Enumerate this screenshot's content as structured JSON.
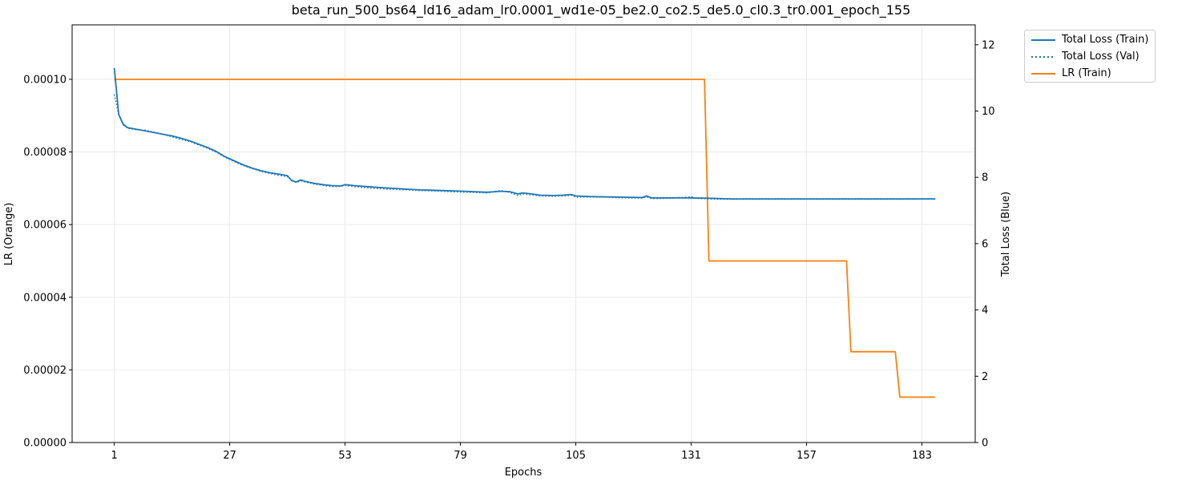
{
  "chart_data": {
    "type": "line",
    "title": "beta_run_500_bs64_ld16_adam_lr0.0001_wd1e-05_be2.0_co2.5_de5.0_cl0.3_tr0.001_epoch_155",
    "xlabel": "Epochs",
    "ylabel_left": "LR (Orange)",
    "ylabel_right": "Total Loss (Blue)",
    "xlim": [
      -8.5,
      195
    ],
    "ylim_left": [
      0,
      0.000115
    ],
    "ylim_right": [
      0,
      12.6
    ],
    "x_ticks": [
      1,
      27,
      53,
      79,
      105,
      131,
      157,
      183
    ],
    "y_left_ticks": [
      "0.00000",
      "0.00002",
      "0.00004",
      "0.00006",
      "0.00008",
      "0.00010"
    ],
    "y_left_tick_values": [
      0,
      2e-05,
      4e-05,
      6e-05,
      8e-05,
      0.0001
    ],
    "y_right_ticks": [
      "0",
      "2",
      "4",
      "6",
      "8",
      "10",
      "12"
    ],
    "y_right_tick_values": [
      0,
      2,
      4,
      6,
      8,
      10,
      12
    ],
    "grid": true,
    "legend_position": "outside top-right",
    "colors": {
      "loss": "#1f77b4",
      "lr": "#ff7f0e"
    },
    "series": [
      {
        "name": "Total Loss (Train)",
        "axis": "right",
        "style": "solid",
        "points": [
          [
            1,
            11.3
          ],
          [
            1.5,
            10.6
          ],
          [
            2,
            9.9
          ],
          [
            3,
            9.6
          ],
          [
            4,
            9.5
          ],
          [
            6,
            9.45
          ],
          [
            8,
            9.4
          ],
          [
            10,
            9.35
          ],
          [
            12,
            9.3
          ],
          [
            14,
            9.25
          ],
          [
            16,
            9.18
          ],
          [
            18,
            9.1
          ],
          [
            20,
            9.0
          ],
          [
            22,
            8.9
          ],
          [
            24,
            8.78
          ],
          [
            26,
            8.62
          ],
          [
            28,
            8.5
          ],
          [
            30,
            8.38
          ],
          [
            32,
            8.28
          ],
          [
            34,
            8.2
          ],
          [
            36,
            8.14
          ],
          [
            38,
            8.1
          ],
          [
            40,
            8.05
          ],
          [
            41,
            7.9
          ],
          [
            42,
            7.86
          ],
          [
            43,
            7.92
          ],
          [
            44,
            7.88
          ],
          [
            46,
            7.82
          ],
          [
            48,
            7.78
          ],
          [
            50,
            7.75
          ],
          [
            52,
            7.74
          ],
          [
            53,
            7.78
          ],
          [
            55,
            7.75
          ],
          [
            58,
            7.72
          ],
          [
            62,
            7.68
          ],
          [
            66,
            7.65
          ],
          [
            70,
            7.62
          ],
          [
            75,
            7.6
          ],
          [
            80,
            7.58
          ],
          [
            85,
            7.55
          ],
          [
            88,
            7.58
          ],
          [
            90,
            7.57
          ],
          [
            92,
            7.5
          ],
          [
            93,
            7.53
          ],
          [
            95,
            7.5
          ],
          [
            97,
            7.46
          ],
          [
            100,
            7.45
          ],
          [
            102,
            7.46
          ],
          [
            104,
            7.48
          ],
          [
            105,
            7.44
          ],
          [
            108,
            7.42
          ],
          [
            112,
            7.41
          ],
          [
            116,
            7.4
          ],
          [
            120,
            7.39
          ],
          [
            121,
            7.44
          ],
          [
            122,
            7.38
          ],
          [
            126,
            7.38
          ],
          [
            130,
            7.38
          ],
          [
            135,
            7.37
          ],
          [
            140,
            7.35
          ],
          [
            150,
            7.35
          ],
          [
            160,
            7.35
          ],
          [
            170,
            7.35
          ],
          [
            180,
            7.35
          ],
          [
            186,
            7.35
          ]
        ]
      },
      {
        "name": "Total Loss (Val)",
        "axis": "right",
        "style": "dotted",
        "points": [
          [
            1,
            10.5
          ],
          [
            1.5,
            10.2
          ],
          [
            2,
            9.9
          ],
          [
            3,
            9.58
          ],
          [
            4,
            9.48
          ],
          [
            6,
            9.44
          ],
          [
            8,
            9.42
          ],
          [
            10,
            9.36
          ],
          [
            12,
            9.3
          ],
          [
            14,
            9.22
          ],
          [
            16,
            9.15
          ],
          [
            18,
            9.08
          ],
          [
            20,
            8.98
          ],
          [
            22,
            8.88
          ],
          [
            24,
            8.76
          ],
          [
            26,
            8.6
          ],
          [
            28,
            8.48
          ],
          [
            30,
            8.36
          ],
          [
            32,
            8.27
          ],
          [
            34,
            8.18
          ],
          [
            36,
            8.12
          ],
          [
            38,
            8.06
          ],
          [
            40,
            8.02
          ],
          [
            41,
            7.92
          ],
          [
            42,
            7.84
          ],
          [
            43,
            7.9
          ],
          [
            44,
            7.86
          ],
          [
            46,
            7.8
          ],
          [
            48,
            7.76
          ],
          [
            50,
            7.72
          ],
          [
            52,
            7.73
          ],
          [
            53,
            7.76
          ],
          [
            55,
            7.72
          ],
          [
            58,
            7.68
          ],
          [
            62,
            7.65
          ],
          [
            66,
            7.63
          ],
          [
            70,
            7.6
          ],
          [
            75,
            7.58
          ],
          [
            80,
            7.55
          ],
          [
            85,
            7.53
          ],
          [
            88,
            7.6
          ],
          [
            90,
            7.55
          ],
          [
            92,
            7.45
          ],
          [
            93,
            7.5
          ],
          [
            95,
            7.47
          ],
          [
            97,
            7.44
          ],
          [
            100,
            7.43
          ],
          [
            102,
            7.44
          ],
          [
            104,
            7.46
          ],
          [
            105,
            7.4
          ],
          [
            108,
            7.41
          ],
          [
            112,
            7.4
          ],
          [
            116,
            7.38
          ],
          [
            120,
            7.37
          ],
          [
            121,
            7.41
          ],
          [
            122,
            7.36
          ],
          [
            126,
            7.37
          ],
          [
            130,
            7.4
          ],
          [
            131,
            7.42
          ],
          [
            132,
            7.37
          ],
          [
            135,
            7.35
          ],
          [
            140,
            7.34
          ],
          [
            150,
            7.34
          ],
          [
            160,
            7.34
          ],
          [
            170,
            7.34
          ],
          [
            180,
            7.34
          ],
          [
            186,
            7.35
          ]
        ]
      },
      {
        "name": "LR (Train)",
        "axis": "left",
        "style": "solid",
        "points": [
          [
            1,
            0.0001
          ],
          [
            134,
            0.0001
          ],
          [
            135,
            5e-05
          ],
          [
            166,
            5e-05
          ],
          [
            167,
            2.5e-05
          ],
          [
            177,
            2.5e-05
          ],
          [
            178,
            1.25e-05
          ],
          [
            186,
            1.25e-05
          ]
        ]
      }
    ]
  }
}
